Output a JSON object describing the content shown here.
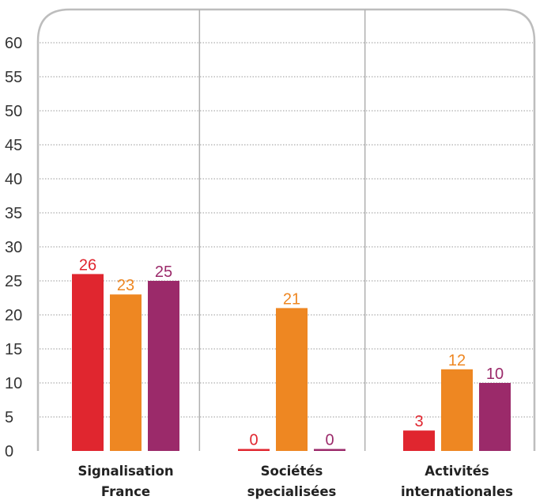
{
  "chart_data": {
    "type": "bar",
    "title": "",
    "xlabel": "",
    "ylabel": "",
    "ylim": [
      0,
      60
    ],
    "yticks": [
      0,
      5,
      10,
      15,
      20,
      25,
      30,
      35,
      40,
      45,
      50,
      55,
      60
    ],
    "grid": true,
    "categories": [
      [
        "Signalisation",
        "France"
      ],
      [
        "Sociétés",
        "specialisées"
      ],
      [
        "Activités",
        "internationales"
      ]
    ],
    "series": [
      {
        "values": [
          26,
          0,
          3
        ],
        "color": "#e0262f"
      },
      {
        "values": [
          23,
          21,
          12
        ],
        "color": "#ee8722"
      },
      {
        "values": [
          25,
          0,
          10
        ],
        "color": "#9b2a6a"
      }
    ],
    "data_labels": [
      [
        "26",
        "0",
        "3"
      ],
      [
        "23",
        "21",
        "12"
      ],
      [
        "25",
        "0",
        "10"
      ]
    ],
    "colors": {
      "grid": "#999999",
      "frame": "#bdbdbd",
      "separator": "#b0b0b0"
    }
  }
}
